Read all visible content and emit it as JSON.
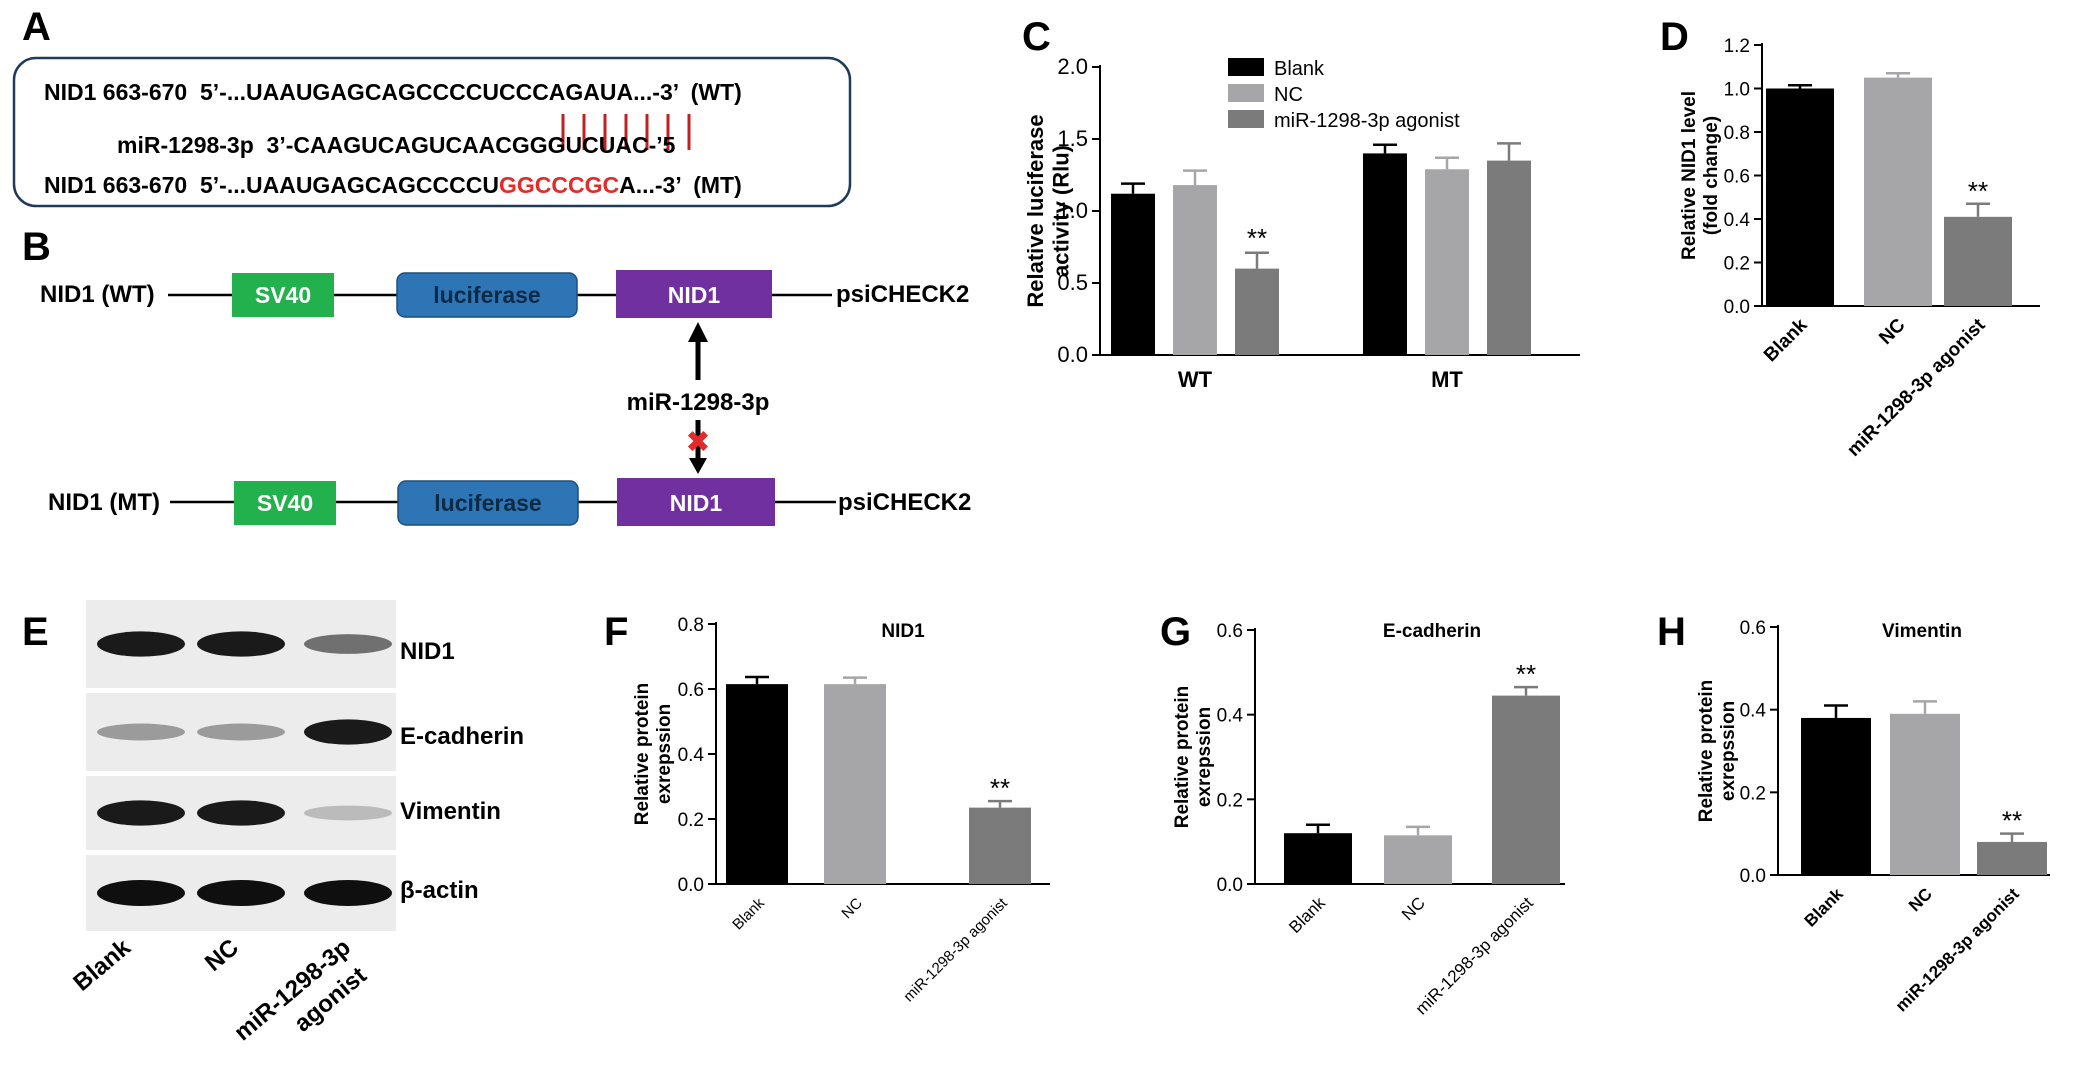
{
  "panels": {
    "A": "A",
    "B": "B",
    "C": "C",
    "D": "D",
    "E": "E",
    "F": "F",
    "G": "G",
    "H": "H"
  },
  "colors": {
    "blank": "#000000",
    "nc": "#a6a6a8",
    "agonist": "#7b7b7b",
    "sv40": "#22b14c",
    "luciferase": "#2e75b6",
    "nid1_box": "#7030a0",
    "mutation_red": "#e32b2b",
    "pair_line": "#c0201f",
    "box_border": "#1f3b5a"
  },
  "panel_a": {
    "wt_line": "NID1 663-670  5’-...UAAUGAGCAGCCCCUCCCAGAUA...-3’  (WT)",
    "mir_line": "miR-1298-3p  3’-CAAGUCAGUCAACGGGUCUAC-’5",
    "mt_prefix": "NID1 663-670  5’-...UAAUGAGCAGCCCCU",
    "mt_mut": "GGCCCGC",
    "mt_suffix": "A...-3’  (MT)"
  },
  "panel_b": {
    "wt_label": "NID1 (WT)",
    "mt_label": "NID1 (MT)",
    "sv40": "SV40",
    "luciferase": "luciferase",
    "nid1": "NID1",
    "vector": "psiCHECK2",
    "mirna": "miR-1298-3p",
    "block_mark": "✖"
  },
  "panel_e": {
    "bands": [
      "NID1",
      "E-cadherin",
      "Vimentin",
      "β-actin"
    ],
    "lanes": [
      "Blank",
      "NC",
      "miR-1298-3p agonist"
    ],
    "lane3_line1": "miR-1298-3p",
    "lane3_line2": "agonist",
    "intensity": [
      [
        0.95,
        0.95,
        0.55
      ],
      [
        0.35,
        0.35,
        0.95
      ],
      [
        0.95,
        0.95,
        0.2
      ],
      [
        1.0,
        1.0,
        1.0
      ]
    ]
  },
  "chart_data": [
    {
      "panel": "C",
      "type": "bar",
      "categories": [
        "WT",
        "MT"
      ],
      "series": [
        {
          "name": "Blank",
          "values": [
            1.12,
            1.4
          ],
          "errors": [
            0.07,
            0.06
          ]
        },
        {
          "name": "NC",
          "values": [
            1.18,
            1.29
          ],
          "errors": [
            0.1,
            0.08
          ]
        },
        {
          "name": "miR-1298-3p agonist",
          "values": [
            0.6,
            1.35
          ],
          "errors": [
            0.11,
            0.12
          ]
        }
      ],
      "ylabel_line1": "Relative luciferase",
      "ylabel_line2": "activity (Rlu)",
      "ylim": [
        0,
        2.0
      ],
      "yticks": [
        "0.0",
        "0.5",
        "1.0",
        "1.5",
        "2.0"
      ],
      "significance": "**",
      "legend": "top-center"
    },
    {
      "panel": "D",
      "type": "bar",
      "categories": [
        "Blank",
        "NC",
        "miR-1298-3p agonist"
      ],
      "values": [
        1.0,
        1.05,
        0.41
      ],
      "errors": [
        0.015,
        0.02,
        0.06
      ],
      "ylabel_line1": "Relative NID1 level",
      "ylabel_line2": "(fold change)",
      "ylim": [
        0,
        1.2
      ],
      "yticks": [
        "0.0",
        "0.2",
        "0.4",
        "0.6",
        "0.8",
        "1.0",
        "1.2"
      ],
      "significance": "**"
    },
    {
      "panel": "F",
      "type": "bar",
      "title": "NID1",
      "categories": [
        "Blank",
        "NC",
        "miR-1298-3p agonist"
      ],
      "values": [
        0.615,
        0.615,
        0.235
      ],
      "errors": [
        0.022,
        0.02,
        0.02
      ],
      "ylabel_line1": "Relative protein",
      "ylabel_line2": "exrepssion",
      "ylim": [
        0,
        0.8
      ],
      "yticks": [
        "0.0",
        "0.2",
        "0.4",
        "0.6",
        "0.8"
      ],
      "significance": "**"
    },
    {
      "panel": "G",
      "type": "bar",
      "title": "E-cadherin",
      "categories": [
        "Blank",
        "NC",
        "miR-1298-3p agonist"
      ],
      "values": [
        0.12,
        0.115,
        0.445
      ],
      "errors": [
        0.02,
        0.02,
        0.02
      ],
      "ylabel_line1": "Relative protein",
      "ylabel_line2": "exrepssion",
      "ylim": [
        0,
        0.6
      ],
      "yticks": [
        "0.0",
        "0.2",
        "0.4",
        "0.6"
      ],
      "significance": "**"
    },
    {
      "panel": "H",
      "type": "bar",
      "title": "Vimentin",
      "categories": [
        "Blank",
        "NC",
        "miR-1298-3p agonist"
      ],
      "values": [
        0.38,
        0.39,
        0.08
      ],
      "errors": [
        0.03,
        0.03,
        0.02
      ],
      "ylabel_line1": "Relative protein",
      "ylabel_line2": "exrepssion",
      "ylim": [
        0,
        0.6
      ],
      "yticks": [
        "0.0",
        "0.2",
        "0.4",
        "0.6"
      ],
      "significance": "**"
    }
  ]
}
